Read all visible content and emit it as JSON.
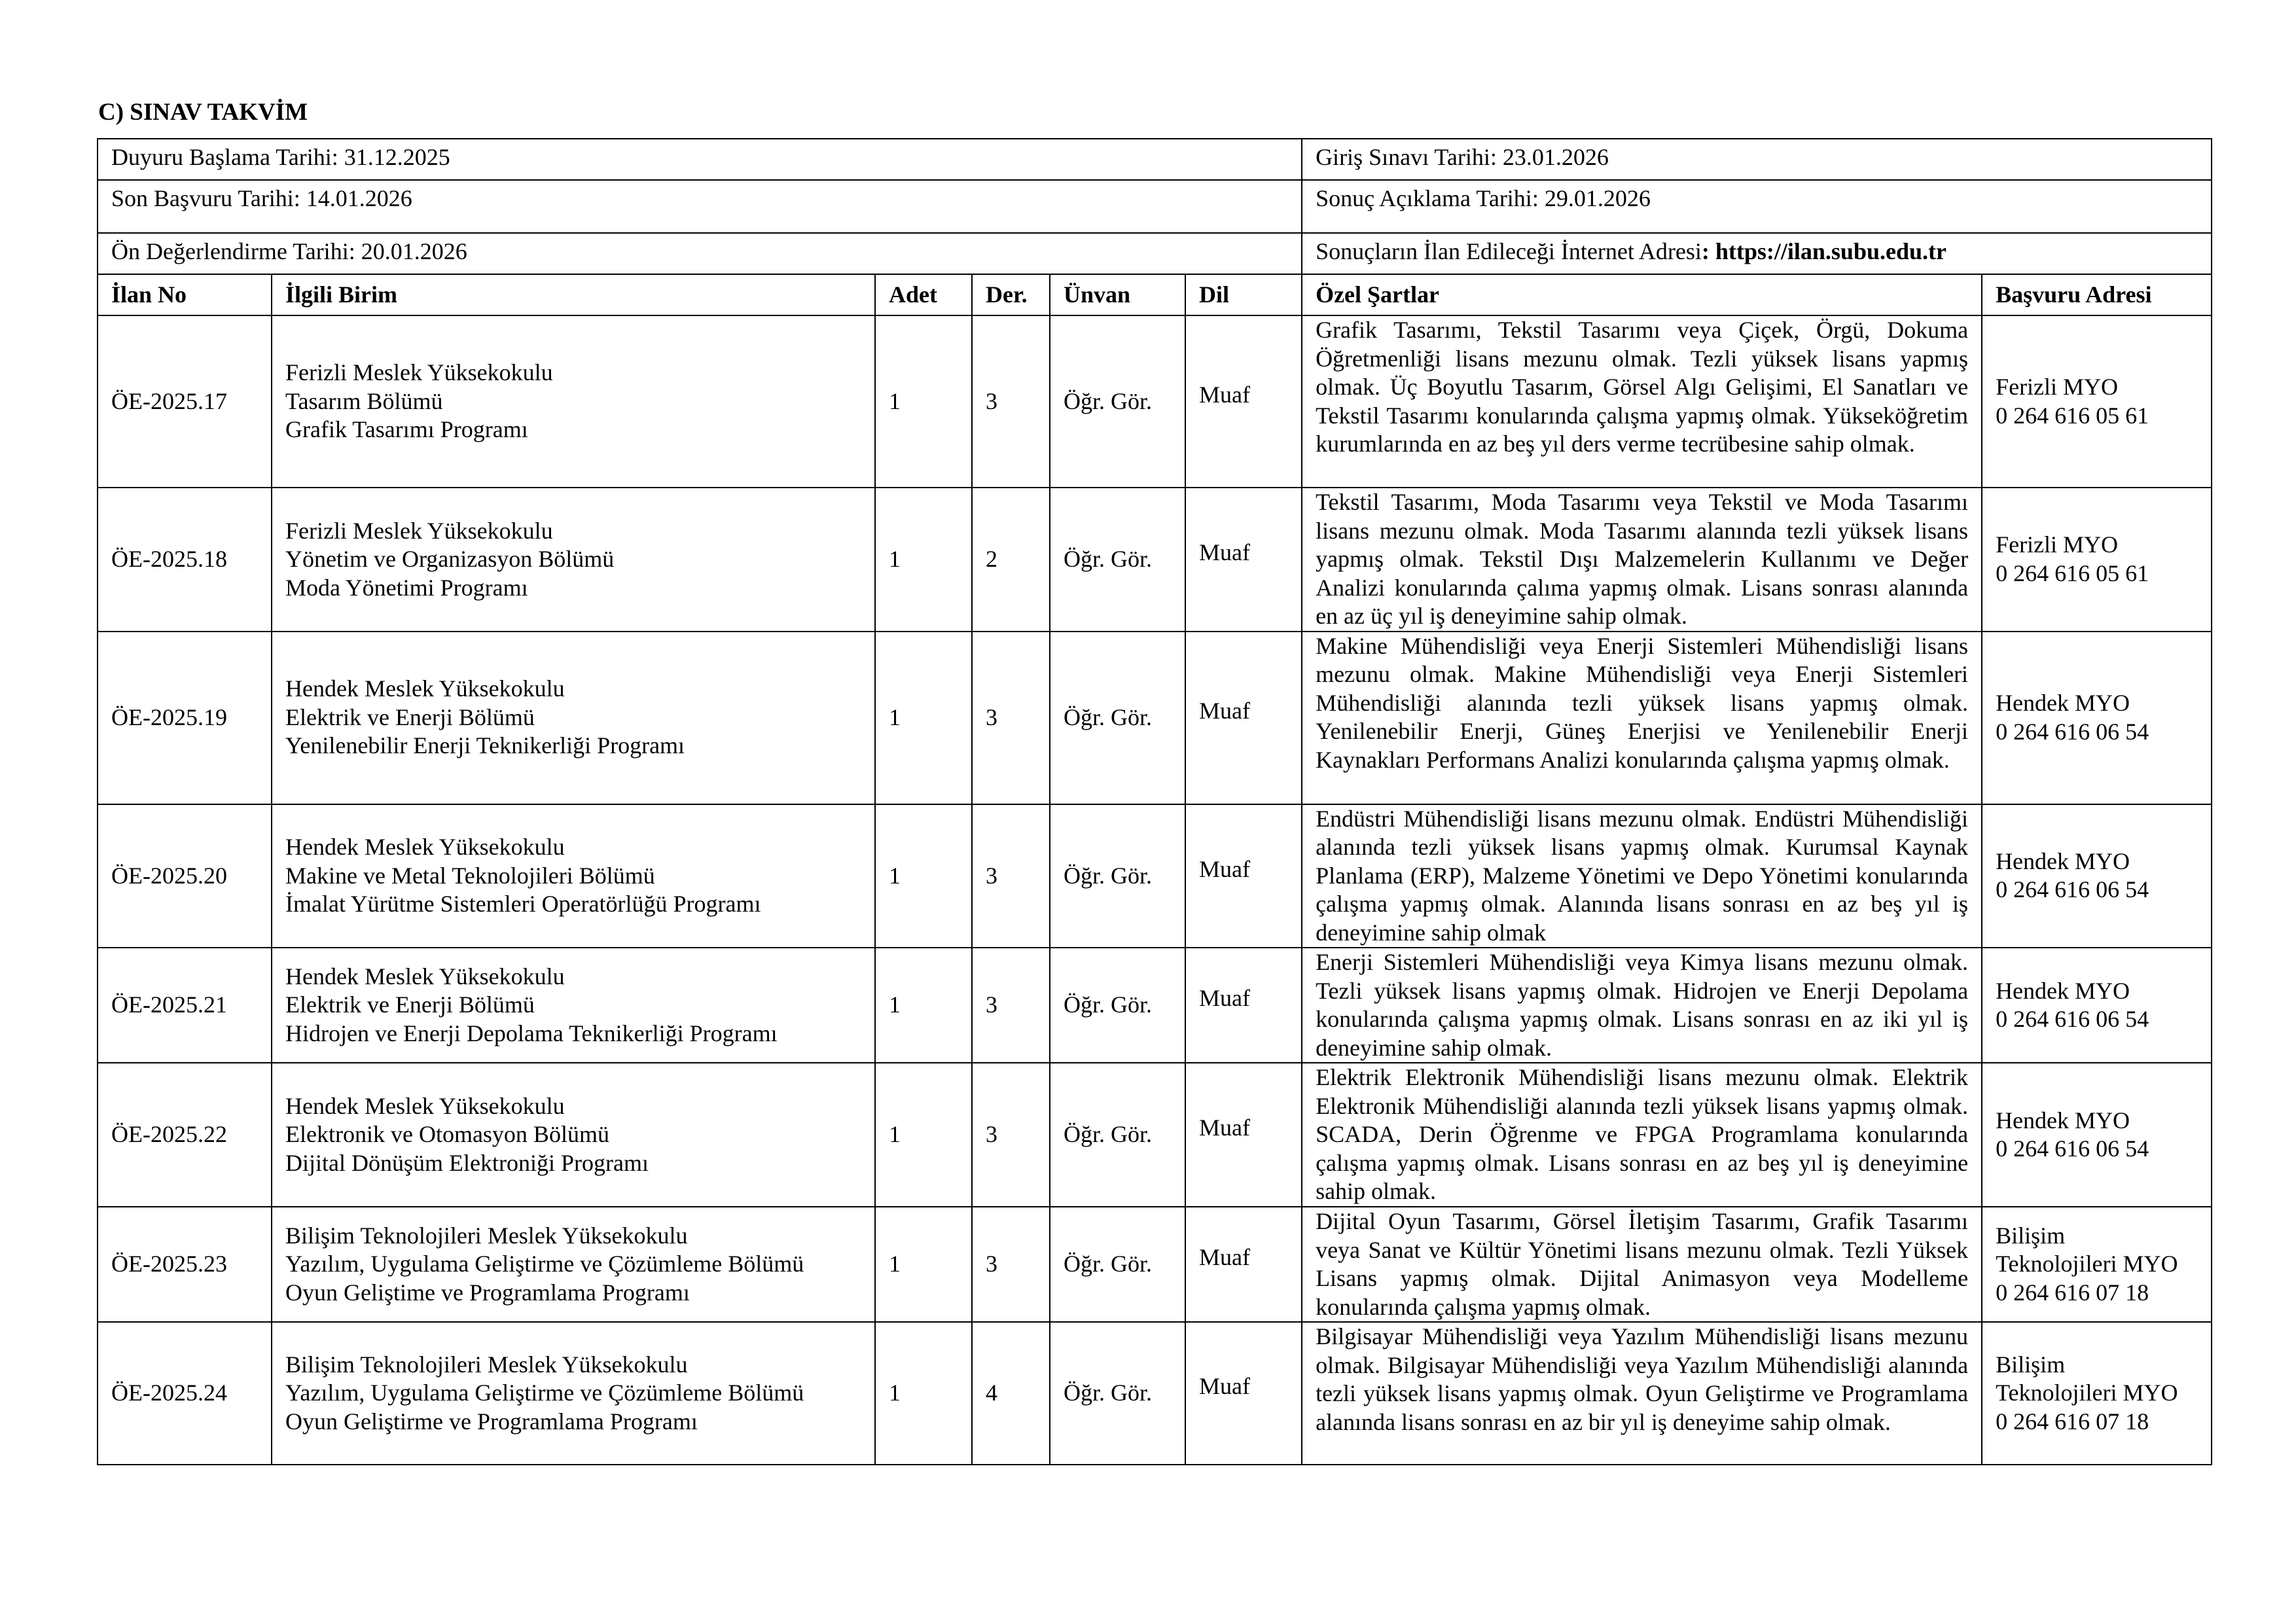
{
  "section_title": "C) SINAV TAKVİM",
  "info": {
    "announcement_start": "Duyuru Başlama Tarihi: 31.12.2025",
    "entrance_exam": "Giriş Sınavı Tarihi: 23.01.2026",
    "last_application": "Son Başvuru Tarihi: 14.01.2026",
    "result_announcement": "Sonuç Açıklama Tarihi: 29.01.2026",
    "pre_evaluation": "Ön Değerlendirme Tarihi: 20.01.2026",
    "results_url_label": "Sonuçların İlan Edileceği İnternet Adresi",
    "results_url": ": https://ilan.subu.edu.tr"
  },
  "headers": [
    "İlan No",
    "İlgili Birim",
    "Adet",
    "Der.",
    "Ünvan",
    "Dil",
    "Özel Şartlar",
    "Başvuru Adresi"
  ],
  "rows": [
    {
      "no": "ÖE-2025.17",
      "unit": [
        "Ferizli Meslek Yüksekokulu",
        "Tasarım Bölümü",
        "Grafik Tasarımı Programı"
      ],
      "count": "1",
      "degree": "3",
      "title": "Öğr. Gör.",
      "lang": "Muaf",
      "conditions": "Grafik Tasarımı, Tekstil Tasarımı veya Çiçek, Örgü, Dokuma Öğretmenliği lisans mezunu olmak. Tezli yüksek lisans yapmış olmak. Üç Boyutlu Tasarım, Görsel Algı Gelişimi, El Sanatları ve Tekstil Tasarımı konularında çalışma yapmış olmak. Yükseköğretim kurumlarında en az beş yıl ders verme tecrübesine sahip olmak.",
      "address": [
        "Ferizli MYO",
        "0 264 616 05 61"
      ]
    },
    {
      "no": "ÖE-2025.18",
      "unit": [
        "Ferizli Meslek Yüksekokulu",
        "Yönetim ve Organizasyon Bölümü",
        "Moda Yönetimi Programı"
      ],
      "count": "1",
      "degree": "2",
      "title": "Öğr. Gör.",
      "lang": "Muaf",
      "conditions": "Tekstil Tasarımı, Moda Tasarımı veya Tekstil ve Moda Tasarımı lisans mezunu olmak. Moda Tasarımı alanında tezli yüksek lisans yapmış olmak. Tekstil Dışı Malzemelerin Kullanımı ve Değer Analizi konularında çalıma yapmış olmak. Lisans sonrası alanında en az üç yıl iş deneyimine sahip olmak.",
      "address": [
        "Ferizli MYO",
        "0 264 616 05 61"
      ]
    },
    {
      "no": "ÖE-2025.19",
      "unit": [
        "Hendek Meslek Yüksekokulu",
        "Elektrik ve Enerji Bölümü",
        "Yenilenebilir Enerji Teknikerliği Programı"
      ],
      "count": "1",
      "degree": "3",
      "title": "Öğr. Gör.",
      "lang": "Muaf",
      "conditions": "Makine Mühendisliği veya Enerji Sistemleri Mühendisliği lisans mezunu olmak. Makine Mühendisliği veya Enerji Sistemleri Mühendisliği alanında tezli yüksek lisans yapmış olmak. Yenilenebilir Enerji, Güneş Enerjisi ve Yenilenebilir Enerji Kaynakları Performans Analizi konularında çalışma yapmış olmak.",
      "address": [
        "Hendek MYO",
        "0 264 616 06 54"
      ]
    },
    {
      "no": "ÖE-2025.20",
      "unit": [
        "Hendek Meslek Yüksekokulu",
        "Makine ve Metal Teknolojileri Bölümü",
        "İmalat Yürütme Sistemleri Operatörlüğü Programı"
      ],
      "count": "1",
      "degree": "3",
      "title": "Öğr. Gör.",
      "lang": "Muaf",
      "conditions": "Endüstri Mühendisliği lisans mezunu olmak. Endüstri Mühendisliği alanında tezli yüksek lisans yapmış olmak. Kurumsal Kaynak Planlama (ERP), Malzeme Yönetimi ve Depo Yönetimi konularında çalışma yapmış olmak. Alanında lisans sonrası en az beş yıl iş deneyimine sahip olmak",
      "address": [
        "Hendek MYO",
        "0 264 616 06 54"
      ]
    },
    {
      "no": "ÖE-2025.21",
      "unit": [
        "Hendek Meslek Yüksekokulu",
        "Elektrik ve Enerji Bölümü",
        "Hidrojen ve Enerji Depolama Teknikerliği Programı"
      ],
      "count": "1",
      "degree": "3",
      "title": "Öğr. Gör.",
      "lang": "Muaf",
      "conditions": "Enerji Sistemleri Mühendisliği veya Kimya lisans mezunu olmak. Tezli yüksek lisans yapmış olmak. Hidrojen ve Enerji Depolama konularında çalışma yapmış olmak. Lisans sonrası en az iki yıl iş deneyimine sahip olmak.",
      "address": [
        "Hendek MYO",
        "0 264 616 06 54"
      ]
    },
    {
      "no": "ÖE-2025.22",
      "unit": [
        "Hendek Meslek Yüksekokulu",
        "Elektronik ve Otomasyon Bölümü",
        "Dijital Dönüşüm Elektroniği Programı"
      ],
      "count": "1",
      "degree": "3",
      "title": "Öğr. Gör.",
      "lang": "Muaf",
      "conditions": "Elektrik Elektronik Mühendisliği lisans mezunu olmak. Elektrik Elektronik Mühendisliği alanında tezli yüksek lisans yapmış olmak. SCADA, Derin Öğrenme ve FPGA Programlama konularında çalışma yapmış olmak. Lisans sonrası en az beş yıl iş deneyimine sahip olmak.",
      "address": [
        "Hendek MYO",
        "0 264 616 06 54"
      ]
    },
    {
      "no": "ÖE-2025.23",
      "unit": [
        "Bilişim Teknolojileri Meslek Yüksekokulu",
        "Yazılım, Uygulama Geliştirme ve Çözümleme Bölümü",
        "Oyun Geliştime ve Programlama Programı"
      ],
      "count": "1",
      "degree": "3",
      "title": "Öğr. Gör.",
      "lang": "Muaf",
      "conditions": "Dijital Oyun Tasarımı, Görsel İletişim Tasarımı, Grafik Tasarımı veya Sanat ve Kültür Yönetimi lisans mezunu olmak. Tezli Yüksek Lisans yapmış olmak. Dijital Animasyon veya Modelleme konularında çalışma yapmış olmak.",
      "address": [
        "Bilişim",
        "Teknolojileri MYO",
        "0 264 616 07 18"
      ]
    },
    {
      "no": "ÖE-2025.24",
      "unit": [
        "Bilişim Teknolojileri Meslek Yüksekokulu",
        "Yazılım, Uygulama Geliştirme ve Çözümleme Bölümü",
        "Oyun Geliştirme ve Programlama Programı"
      ],
      "count": "1",
      "degree": "4",
      "title": "Öğr. Gör.",
      "lang": "Muaf",
      "conditions": "Bilgisayar Mühendisliği veya Yazılım Mühendisliği lisans mezunu olmak. Bilgisayar Mühendisliği veya Yazılım Mühendisliği alanında tezli yüksek lisans yapmış olmak. Oyun Geliştirme ve Programlama alanında lisans sonrası en az bir yıl iş deneyime sahip olmak.",
      "address": [
        "Bilişim",
        "Teknolojileri MYO",
        "0 264 616 07 18"
      ]
    }
  ]
}
